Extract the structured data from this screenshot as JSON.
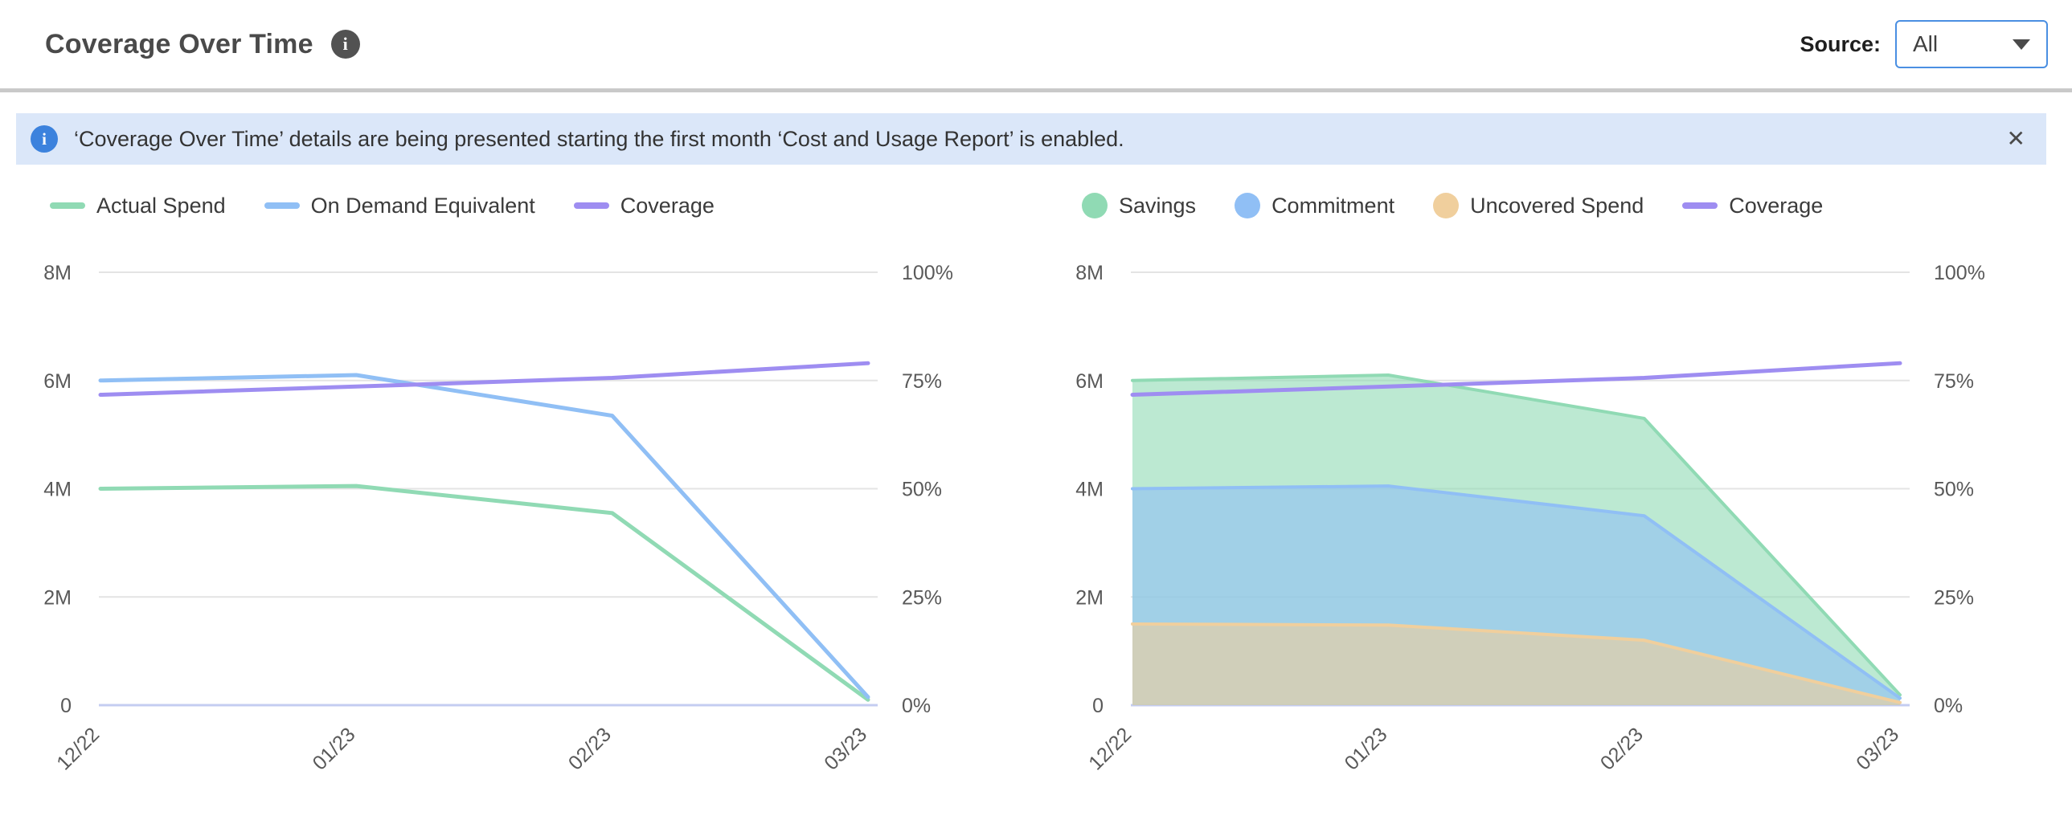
{
  "header": {
    "title": "Coverage Over Time",
    "info_glyph": "i",
    "source_label": "Source:",
    "source_value": "All"
  },
  "banner": {
    "info_glyph": "i",
    "text": "‘Coverage Over Time’ details are being presented starting the first month ‘Cost and Usage Report’ is enabled.",
    "close_glyph": "✕"
  },
  "colors": {
    "accent_blue": "#4a8fe2",
    "banner_bg": "#dbe7f9",
    "banner_icon_blue": "#3c82dd",
    "divider_gray": "#c9c9c9",
    "gridline": "#e4e4e4",
    "zero_axis": "#c4cdf1",
    "tick_text": "#595959",
    "series_green": "#90dab4",
    "series_blue": "#90bff5",
    "series_purple": "#9e8df1",
    "series_orange": "#f0cf9d"
  },
  "chart_data": [
    {
      "type": "line",
      "x": [
        "12/22",
        "01/23",
        "02/23",
        "03/23"
      ],
      "y_left": {
        "min": 0,
        "max": 8000000,
        "ticks": [
          "0",
          "2M",
          "4M",
          "6M",
          "8M"
        ]
      },
      "y_right": {
        "min": 0,
        "max": 100,
        "ticks": [
          "0%",
          "25%",
          "50%",
          "75%",
          "100%"
        ]
      },
      "grid": true,
      "legend_position": "top-left",
      "series": [
        {
          "name": "Actual Spend",
          "type": "line",
          "axis": "left",
          "color": "#90dab4",
          "values": [
            4000000,
            4050000,
            3550000,
            100000
          ]
        },
        {
          "name": "On Demand Equivalent",
          "type": "line",
          "axis": "left",
          "color": "#90bff5",
          "values": [
            6000000,
            6100000,
            5350000,
            150000
          ]
        },
        {
          "name": "Coverage",
          "type": "line",
          "axis": "right",
          "color": "#9e8df1",
          "values": [
            71.7,
            73.6,
            75.6,
            79
          ]
        }
      ],
      "legend": [
        {
          "label": "Actual Spend",
          "marker": "dash",
          "color": "#90dab4"
        },
        {
          "label": "On Demand Equivalent",
          "marker": "dash",
          "color": "#90bff5"
        },
        {
          "label": "Coverage",
          "marker": "dash",
          "color": "#9e8df1"
        }
      ]
    },
    {
      "type": "area",
      "stacked": true,
      "x": [
        "12/22",
        "01/23",
        "02/23",
        "03/23"
      ],
      "y_left": {
        "min": 0,
        "max": 8000000,
        "ticks": [
          "0",
          "2M",
          "4M",
          "6M",
          "8M"
        ]
      },
      "y_right": {
        "min": 0,
        "max": 100,
        "ticks": [
          "0%",
          "25%",
          "50%",
          "75%",
          "100%"
        ]
      },
      "grid": true,
      "legend_position": "top-left",
      "series": [
        {
          "name": "Uncovered Spend",
          "type": "area",
          "axis": "left",
          "color": "#f0cf9d",
          "values": [
            1500000,
            1480000,
            1200000,
            50000
          ]
        },
        {
          "name": "Commitment",
          "type": "area",
          "axis": "left",
          "color": "#90bff5",
          "values": [
            2500000,
            2570000,
            2300000,
            80000
          ]
        },
        {
          "name": "Savings",
          "type": "area",
          "axis": "left",
          "color": "#90dab4",
          "values": [
            2000000,
            2050000,
            1800000,
            60000
          ]
        },
        {
          "name": "Coverage",
          "type": "line",
          "axis": "right",
          "color": "#9e8df1",
          "values": [
            71.7,
            73.6,
            75.6,
            79
          ]
        }
      ],
      "legend": [
        {
          "label": "Savings",
          "marker": "dot",
          "color": "#90dab4"
        },
        {
          "label": "Commitment",
          "marker": "dot",
          "color": "#90bff5"
        },
        {
          "label": "Uncovered Spend",
          "marker": "dot",
          "color": "#f0cf9d"
        },
        {
          "label": "Coverage",
          "marker": "dash",
          "color": "#9e8df1"
        }
      ]
    }
  ]
}
